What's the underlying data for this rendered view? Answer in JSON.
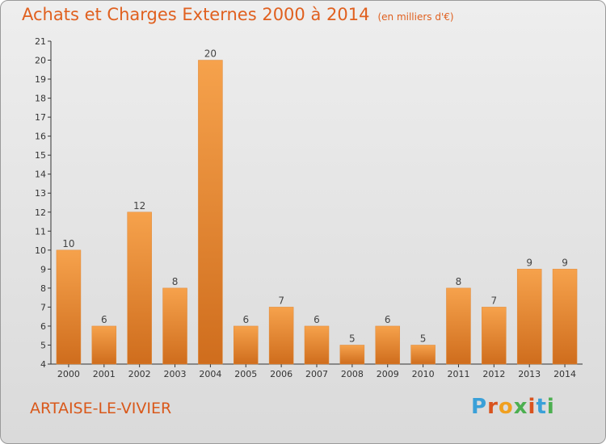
{
  "header": {
    "title": "Achats et Charges Externes 2000 à 2014",
    "unit": "(en milliers d'€)"
  },
  "footer": {
    "place": "ARTAISE-LE-VIVIER",
    "brand": "Proxiti"
  },
  "colors": {
    "title": "#e0601f",
    "bar_light": "#f6a24c",
    "bar_dark": "#cf6d1d",
    "brand_letters": [
      "#3aa0d8",
      "#d9531e",
      "#f0a020",
      "#4caf50",
      "#d9531e",
      "#3aa0d8",
      "#4caf50"
    ]
  },
  "chart_data": {
    "type": "bar",
    "categories": [
      "2000",
      "2001",
      "2002",
      "2003",
      "2004",
      "2005",
      "2006",
      "2007",
      "2008",
      "2009",
      "2010",
      "2011",
      "2012",
      "2013",
      "2014"
    ],
    "values": [
      10,
      6,
      12,
      8,
      20,
      6,
      7,
      6,
      5,
      6,
      5,
      8,
      7,
      9,
      9
    ],
    "ylim": [
      4,
      21
    ],
    "yticks": [
      4,
      5,
      6,
      7,
      8,
      9,
      10,
      11,
      12,
      13,
      14,
      15,
      16,
      17,
      18,
      19,
      20,
      21
    ],
    "grid": false,
    "data_labels": true
  }
}
